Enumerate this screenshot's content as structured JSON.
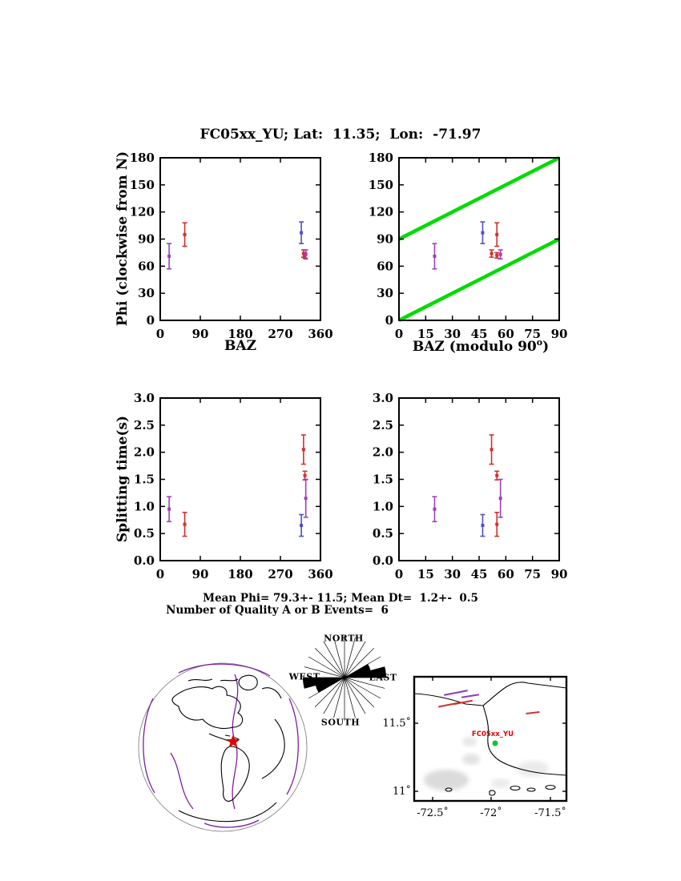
{
  "title": "FC05xx_YU; Lat:  11.35;  Lon:  -71.97",
  "stats": {
    "mean_line": "Mean Phi= 79.3+- 11.5; Mean Dt=  1.2+-  0.5",
    "events_line": "Number of Quality A or B Events=  6"
  },
  "axis_labels": {
    "phi": "Phi (clockwise from N)",
    "baz": "BAZ",
    "baz_mod_pre": "BAZ (modulo 90",
    "baz_mod_sup": "o",
    "baz_mod_post": ")",
    "split": "Splitting time(s)"
  },
  "chart_data": [
    {
      "type": "scatter",
      "xlabel": "BAZ",
      "ylabel": "Phi (clockwise from N)",
      "xlim": [
        0,
        360
      ],
      "ylim": [
        0,
        180
      ],
      "grid": false,
      "xticks": {
        "values": [
          0,
          90,
          180,
          270,
          360
        ],
        "labels": [
          "0",
          "90",
          "180",
          "270",
          "360"
        ]
      },
      "yticks": {
        "values": [
          0,
          30,
          60,
          90,
          120,
          150,
          180
        ],
        "labels": [
          "0",
          "30",
          "60",
          "90",
          "120",
          "150",
          "180"
        ]
      },
      "points": [
        {
          "x": 20,
          "y": 71,
          "e": 14,
          "c": "#a040b8"
        },
        {
          "x": 55,
          "y": 95,
          "e": 13,
          "c": "#d03030"
        },
        {
          "x": 317,
          "y": 97,
          "e": 12,
          "c": "#5050c0"
        },
        {
          "x": 322,
          "y": 74,
          "e": 4,
          "c": "#d03030"
        },
        {
          "x": 325,
          "y": 72,
          "e": 3,
          "c": "#d03030"
        },
        {
          "x": 327,
          "y": 73,
          "e": 5,
          "c": "#a040b8"
        }
      ]
    },
    {
      "type": "scatter",
      "xlabel": "BAZ (modulo 90)",
      "ylabel": "Phi (clockwise from N)",
      "xlim": [
        0,
        90
      ],
      "ylim": [
        0,
        180
      ],
      "grid": false,
      "xticks": {
        "values": [
          0,
          15,
          30,
          45,
          60,
          75,
          90
        ],
        "labels": [
          "0",
          "15",
          "30",
          "45",
          "60",
          "75",
          "90"
        ]
      },
      "yticks": {
        "values": [
          0,
          30,
          60,
          90,
          120,
          150,
          180
        ],
        "labels": [
          "0",
          "30",
          "60",
          "90",
          "120",
          "150",
          "180"
        ]
      },
      "lines": [
        {
          "x1": 0,
          "y1": 90,
          "x2": 90,
          "y2": 180
        },
        {
          "x1": 0,
          "y1": 0,
          "x2": 90,
          "y2": 90
        }
      ],
      "line_color": "#00dc00",
      "line_width": 4.5,
      "points": [
        {
          "x": 20,
          "y": 71,
          "e": 14,
          "c": "#a040b8"
        },
        {
          "x": 55,
          "y": 95,
          "e": 13,
          "c": "#d03030"
        },
        {
          "x": 47,
          "y": 97,
          "e": 12,
          "c": "#5050c0"
        },
        {
          "x": 52,
          "y": 74,
          "e": 4,
          "c": "#d03030"
        },
        {
          "x": 55,
          "y": 72,
          "e": 3,
          "c": "#d03030"
        },
        {
          "x": 57,
          "y": 73,
          "e": 5,
          "c": "#a040b8"
        }
      ]
    },
    {
      "type": "scatter",
      "xlabel": "",
      "ylabel": "Splitting time(s)",
      "xlim": [
        0,
        360
      ],
      "ylim": [
        0,
        3
      ],
      "grid": false,
      "xticks": {
        "values": [
          0,
          90,
          180,
          270,
          360
        ],
        "labels": [
          "0",
          "90",
          "180",
          "270",
          "360"
        ]
      },
      "yticks": {
        "values": [
          0,
          0.5,
          1,
          1.5,
          2,
          2.5,
          3
        ],
        "labels": [
          "0.0",
          "0.5",
          "1.0",
          "1.5",
          "2.0",
          "2.5",
          "3.0"
        ]
      },
      "points": [
        {
          "x": 20,
          "y": 0.95,
          "e": 0.23,
          "c": "#a040b8"
        },
        {
          "x": 55,
          "y": 0.67,
          "e": 0.22,
          "c": "#d03030"
        },
        {
          "x": 317,
          "y": 0.65,
          "e": 0.2,
          "c": "#5050c0"
        },
        {
          "x": 322,
          "y": 2.05,
          "e": 0.27,
          "c": "#d03030"
        },
        {
          "x": 325,
          "y": 1.57,
          "e": 0.08,
          "c": "#d03030"
        },
        {
          "x": 327,
          "y": 1.15,
          "e": 0.35,
          "c": "#a040b8"
        }
      ]
    },
    {
      "type": "scatter",
      "xlabel": "",
      "ylabel": "Splitting time(s)",
      "xlim": [
        0,
        90
      ],
      "ylim": [
        0,
        3
      ],
      "grid": false,
      "xticks": {
        "values": [
          0,
          15,
          30,
          45,
          60,
          75,
          90
        ],
        "labels": [
          "0",
          "15",
          "30",
          "45",
          "60",
          "75",
          "90"
        ]
      },
      "yticks": {
        "values": [
          0,
          0.5,
          1,
          1.5,
          2,
          2.5,
          3
        ],
        "labels": [
          "0.0",
          "0.5",
          "1.0",
          "1.5",
          "2.0",
          "2.5",
          "3.0"
        ]
      },
      "points": [
        {
          "x": 20,
          "y": 0.95,
          "e": 0.23,
          "c": "#a040b8"
        },
        {
          "x": 55,
          "y": 0.67,
          "e": 0.22,
          "c": "#d03030"
        },
        {
          "x": 47,
          "y": 0.65,
          "e": 0.2,
          "c": "#5050c0"
        },
        {
          "x": 52,
          "y": 2.05,
          "e": 0.27,
          "c": "#d03030"
        },
        {
          "x": 55,
          "y": 1.57,
          "e": 0.08,
          "c": "#d03030"
        },
        {
          "x": 57,
          "y": 1.15,
          "e": 0.35,
          "c": "#a040b8"
        }
      ]
    }
  ],
  "rose": {
    "labels": {
      "north": "NORTH",
      "west": "WEST",
      "east": "EAST",
      "south": "SOUTH"
    },
    "spoke_step_deg": 15,
    "sectors": [
      {
        "a0": 75,
        "a1": 90,
        "r": 1.0
      },
      {
        "a0": 60,
        "a1": 75,
        "r": 0.65
      },
      {
        "a0": 255,
        "a1": 270,
        "r": 1.0
      },
      {
        "a0": 240,
        "a1": 255,
        "r": 0.72
      }
    ]
  },
  "map": {
    "station_label": "FC05xx_YU",
    "station_color": "#00c832",
    "xtick_labels": [
      "-72.5˚",
      "-72˚",
      "-71.5˚"
    ],
    "ytick_labels": [
      "11.5˚",
      "11˚"
    ],
    "bars": [
      {
        "x": 104,
        "y": 27,
        "len": 30,
        "ang": -11,
        "c": "#8a3ab8"
      },
      {
        "x": 122,
        "y": 31,
        "len": 22,
        "ang": -9,
        "c": "#8a3ab8"
      },
      {
        "x": 95,
        "y": 42,
        "len": 26,
        "ang": -11,
        "c": "#d03030"
      },
      {
        "x": 113,
        "y": 39,
        "len": 24,
        "ang": -11,
        "c": "#d03030"
      },
      {
        "x": 200,
        "y": 52,
        "len": 17,
        "ang": -7,
        "c": "#d03030"
      }
    ]
  },
  "globe": {
    "marker": "station-star",
    "marker_color": "#e00000"
  }
}
